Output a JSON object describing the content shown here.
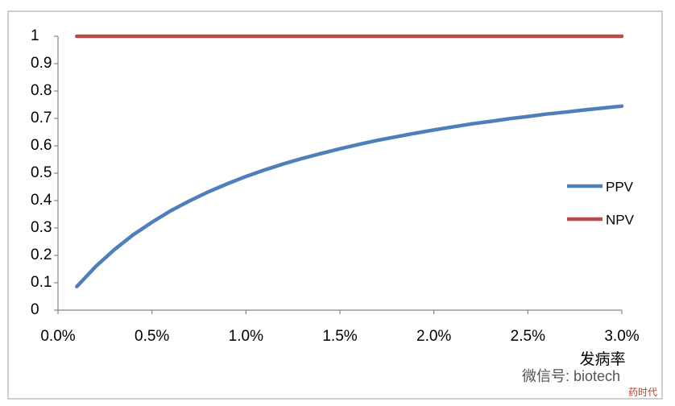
{
  "chart_data": {
    "type": "line",
    "x_label": "发病率",
    "x": [
      0.1,
      0.2,
      0.3,
      0.4,
      0.5,
      0.6,
      0.7,
      0.8,
      0.9,
      1.0,
      1.1,
      1.2,
      1.3,
      1.4,
      1.5,
      1.6,
      1.7,
      1.8,
      1.9,
      2.0,
      2.1,
      2.2,
      2.3,
      2.4,
      2.5,
      2.6,
      2.7,
      2.8,
      2.9,
      3.0
    ],
    "series": [
      {
        "name": "PPV",
        "color": "#4f7fba",
        "values": [
          0.086,
          0.159,
          0.221,
          0.275,
          0.321,
          0.363,
          0.399,
          0.432,
          0.461,
          0.488,
          0.512,
          0.534,
          0.554,
          0.572,
          0.589,
          0.605,
          0.62,
          0.633,
          0.646,
          0.658,
          0.669,
          0.68,
          0.689,
          0.699,
          0.707,
          0.716,
          0.723,
          0.731,
          0.738,
          0.745
        ]
      },
      {
        "name": "NPV",
        "color": "#b84a48",
        "values": [
          1,
          1,
          1,
          1,
          1,
          1,
          1,
          1,
          1,
          1,
          1,
          1,
          1,
          1,
          1,
          1,
          1,
          1,
          1,
          1,
          1,
          1,
          1,
          1,
          1,
          1,
          1,
          1,
          1,
          1
        ]
      }
    ],
    "xlim": [
      0,
      3
    ],
    "xticks": [
      {
        "value": 0,
        "label": "0.0%"
      },
      {
        "value": 0.5,
        "label": "0.5%"
      },
      {
        "value": 1,
        "label": "1.0%"
      },
      {
        "value": 1.5,
        "label": "1.5%"
      },
      {
        "value": 2,
        "label": "2.0%"
      },
      {
        "value": 2.5,
        "label": "2.5%"
      },
      {
        "value": 3,
        "label": "3.0%"
      }
    ],
    "ylim": [
      0,
      1
    ],
    "yticks": [
      0,
      0.1,
      0.2,
      0.3,
      0.4,
      0.5,
      0.6,
      0.7,
      0.8,
      0.9,
      1
    ],
    "grid": false,
    "legend": "right",
    "watermark": "微信号: biotech",
    "watermark_logo": "药时代"
  }
}
